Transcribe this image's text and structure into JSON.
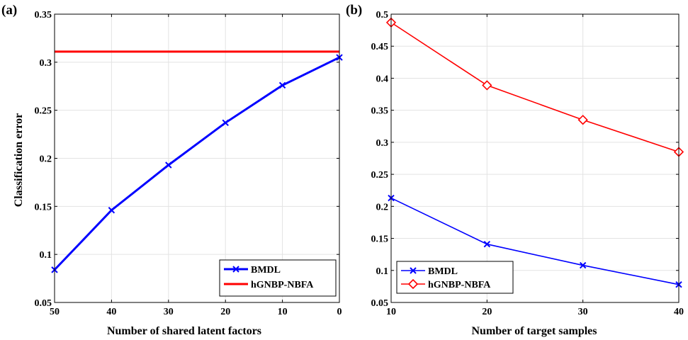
{
  "panels": [
    {
      "label": "(a)",
      "xlabel": "Number of shared latent factors",
      "ylabel": "Classification error"
    },
    {
      "label": "(b)",
      "xlabel": "Number of target samples",
      "ylabel": ""
    }
  ],
  "chart_data": [
    {
      "type": "line",
      "title": "",
      "xlabel": "Number of shared latent factors",
      "ylabel": "Classification error",
      "x_categories": [
        "50",
        "40",
        "30",
        "20",
        "10",
        "0"
      ],
      "ylim": [
        0.05,
        0.35
      ],
      "yticks": [
        0.05,
        0.1,
        0.15,
        0.2,
        0.25,
        0.3,
        0.35
      ],
      "ytick_labels": [
        "0.05",
        "0.1",
        "0.15",
        "0.2",
        "0.25",
        "0.3",
        "0.35"
      ],
      "grid": true,
      "legend_position": "bottom-right",
      "series": [
        {
          "name": "BMDL",
          "values": [
            0.084,
            0.146,
            0.193,
            0.237,
            0.276,
            0.305
          ],
          "color": "#0000ff",
          "marker": "x",
          "stroke": "thick"
        },
        {
          "name": "hGNBP-NBFA",
          "values": [
            0.311,
            0.311,
            0.311,
            0.311,
            0.311,
            0.311
          ],
          "color": "#ff0000",
          "marker": "none",
          "stroke": "thick"
        }
      ]
    },
    {
      "type": "line",
      "title": "",
      "xlabel": "Number of target samples",
      "ylabel": "",
      "x_categories": [
        "10",
        "20",
        "30",
        "40"
      ],
      "ylim": [
        0.05,
        0.5
      ],
      "yticks": [
        0.05,
        0.1,
        0.15,
        0.2,
        0.25,
        0.3,
        0.35,
        0.4,
        0.45,
        0.5
      ],
      "ytick_labels": [
        "0.05",
        "0.1",
        "0.15",
        "0.2",
        "0.25",
        "0.3",
        "0.35",
        "0.4",
        "0.45",
        "0.5"
      ],
      "grid": true,
      "legend_position": "bottom-left",
      "series": [
        {
          "name": "BMDL",
          "values": [
            0.213,
            0.141,
            0.108,
            0.078
          ],
          "color": "#0000ff",
          "marker": "x",
          "stroke": "thin"
        },
        {
          "name": "hGNBP-NBFA",
          "values": [
            0.487,
            0.389,
            0.335,
            0.285
          ],
          "color": "#ff0000",
          "marker": "diamond",
          "stroke": "thin"
        }
      ]
    }
  ]
}
